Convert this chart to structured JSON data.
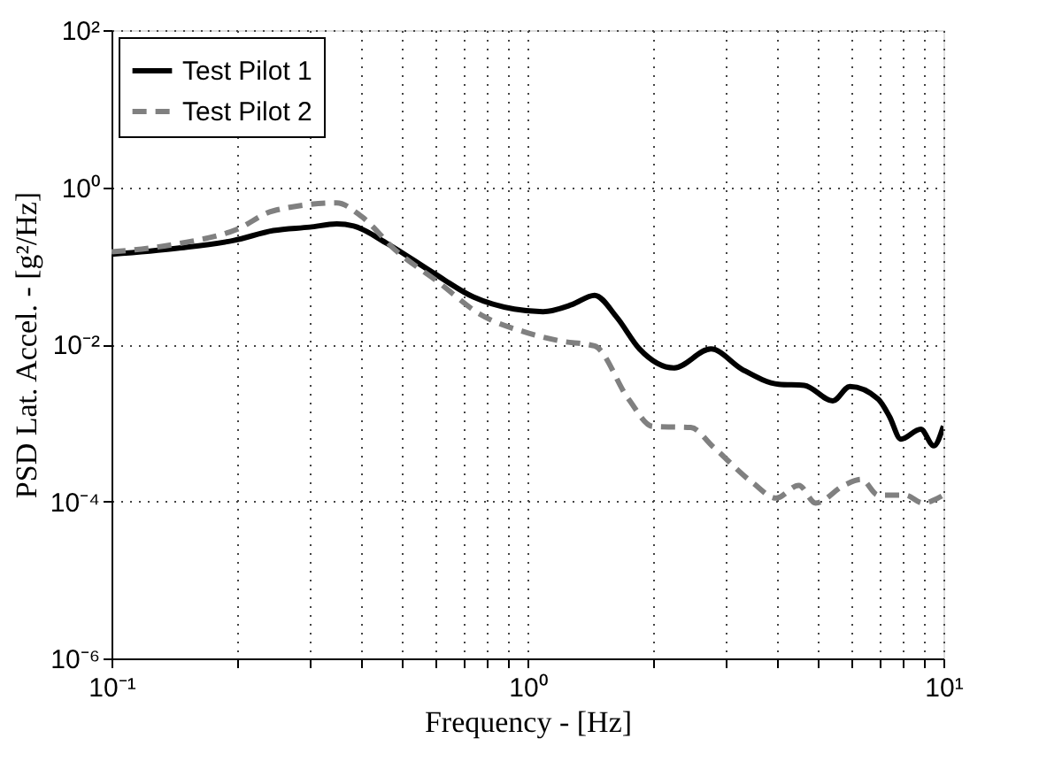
{
  "chart_data": {
    "type": "line",
    "xlabel": "Frequency - [Hz]",
    "ylabel": "PSD Lat. Accel. - [g²/Hz]",
    "log": "xy",
    "grid": true,
    "legend": "top left",
    "xlim": [
      0.1,
      10
    ],
    "ylim": [
      1e-06,
      100
    ],
    "xticks": [
      {
        "value": 0.1,
        "label": "10⁻¹"
      },
      {
        "value": 0.2,
        "label": null
      },
      {
        "value": 0.3,
        "label": null
      },
      {
        "value": 0.4,
        "label": null
      },
      {
        "value": 0.5,
        "label": null
      },
      {
        "value": 0.6,
        "label": null
      },
      {
        "value": 0.7,
        "label": null
      },
      {
        "value": 0.8,
        "label": null
      },
      {
        "value": 0.9,
        "label": null
      },
      {
        "value": 1,
        "label": "10⁰"
      },
      {
        "value": 2,
        "label": null
      },
      {
        "value": 3,
        "label": null
      },
      {
        "value": 4,
        "label": null
      },
      {
        "value": 5,
        "label": null
      },
      {
        "value": 6,
        "label": null
      },
      {
        "value": 7,
        "label": null
      },
      {
        "value": 8,
        "label": null
      },
      {
        "value": 9,
        "label": null
      },
      {
        "value": 10,
        "label": "10¹"
      }
    ],
    "yticks": [
      {
        "value": 1e-06,
        "label": "10⁻⁶"
      },
      {
        "value": 0.0001,
        "label": "10⁻⁴"
      },
      {
        "value": 0.01,
        "label": "10⁻²"
      },
      {
        "value": 1,
        "label": "10⁰"
      },
      {
        "value": 100,
        "label": "10²"
      }
    ],
    "series": [
      {
        "name": "Test Pilot 1",
        "color": "#000000",
        "line_style": "solid",
        "x": [
          0.1,
          0.144,
          0.197,
          0.245,
          0.3,
          0.348,
          0.382,
          0.461,
          0.594,
          0.741,
          0.93,
          1.09,
          1.28,
          1.45,
          1.64,
          1.86,
          2.25,
          2.76,
          3.28,
          4.02,
          4.63,
          5.42,
          5.96,
          6.97,
          7.42,
          7.9,
          8.82,
          9.48,
          10
        ],
        "values": [
          0.14,
          0.167,
          0.21,
          0.28,
          0.31,
          0.34,
          0.32,
          0.19,
          0.081,
          0.04,
          0.028,
          0.026,
          0.032,
          0.042,
          0.022,
          0.0087,
          0.005,
          0.0087,
          0.0048,
          0.0031,
          0.003,
          0.0019,
          0.0029,
          0.002,
          0.0012,
          0.00062,
          0.00083,
          0.00051,
          0.00091
        ]
      },
      {
        "name": "Test Pilot 2",
        "color": "#808080",
        "line_style": "dashed",
        "x": [
          0.1,
          0.144,
          0.2,
          0.245,
          0.348,
          0.4,
          0.48,
          0.61,
          0.77,
          1,
          1.2,
          1.45,
          1.75,
          2,
          2.47,
          2.8,
          3.49,
          3.96,
          4.49,
          4.93,
          5.77,
          6.35,
          6.97,
          8.1,
          8.93,
          9.7,
          10
        ],
        "values": [
          0.15,
          0.19,
          0.29,
          0.5,
          0.63,
          0.42,
          0.16,
          0.062,
          0.024,
          0.014,
          0.011,
          0.0095,
          0.002,
          0.0009,
          0.00087,
          0.00049,
          0.00017,
          0.00011,
          0.00016,
          9.5e-05,
          0.00016,
          0.00019,
          0.00012,
          0.00012,
          9.5e-05,
          0.00011,
          0.00012
        ]
      }
    ]
  }
}
